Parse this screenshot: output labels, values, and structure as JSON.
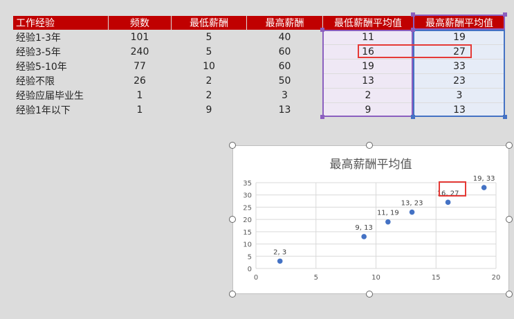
{
  "sheet": {
    "headers": [
      "工作经验",
      "频数",
      "最低薪酬",
      "最高薪酬",
      "最低薪酬平均值",
      "最高薪酬平均值"
    ],
    "rows": [
      [
        "经验1-3年",
        "101",
        "5",
        "40",
        "11",
        "19"
      ],
      [
        "经验3-5年",
        "240",
        "5",
        "60",
        "16",
        "27"
      ],
      [
        "经验5-10年",
        "77",
        "10",
        "60",
        "19",
        "33"
      ],
      [
        "经验不限",
        "26",
        "2",
        "50",
        "13",
        "23"
      ],
      [
        "经验应届毕业生",
        "1",
        "2",
        "3",
        "2",
        "3"
      ],
      [
        "经验1年以下",
        "1",
        "9",
        "13",
        "9",
        "13"
      ]
    ]
  },
  "chart_data": {
    "type": "scatter",
    "title": "最高薪酬平均值",
    "xlabel": "",
    "ylabel": "",
    "xlim": [
      0,
      20
    ],
    "ylim": [
      0,
      35
    ],
    "xticks": [
      0,
      5,
      10,
      15,
      20
    ],
    "yticks": [
      0,
      5,
      10,
      15,
      20,
      25,
      30,
      35
    ],
    "grid": true,
    "points": [
      {
        "x": 11,
        "y": 19,
        "label": "11, 19"
      },
      {
        "x": 16,
        "y": 27,
        "label": "16, 27"
      },
      {
        "x": 19,
        "y": 33,
        "label": "19, 33"
      },
      {
        "x": 13,
        "y": 23,
        "label": "13, 23"
      },
      {
        "x": 2,
        "y": 3,
        "label": "2, 3"
      },
      {
        "x": 9,
        "y": 13,
        "label": "9, 13"
      }
    ],
    "marker_color": "#4472c4"
  },
  "colors": {
    "header_bg": "#c00000",
    "highlight": "#e53935",
    "selection_a": "#8b5fbf",
    "selection_b": "#4472c4"
  }
}
